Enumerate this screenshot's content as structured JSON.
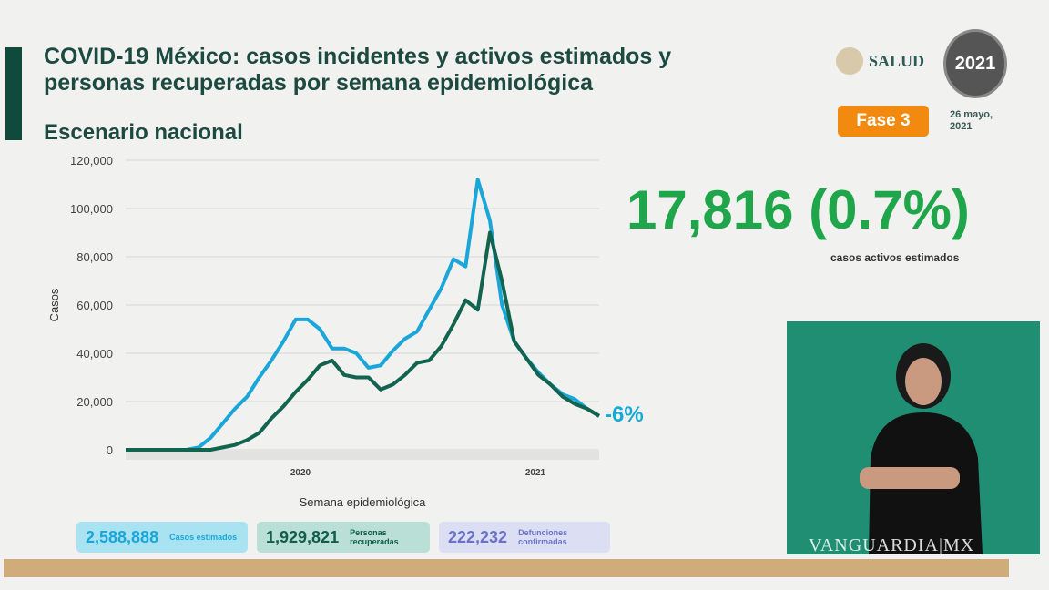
{
  "header": {
    "title": "COVID-19 México: casos incidentes y activos estimados y personas recuperadas por semana epidemiológica",
    "subtitle": "Escenario nacional",
    "salud_logo": "SALUD",
    "mexico_logo": "2021",
    "phase": "Fase 3",
    "date": "26 mayo, 2021"
  },
  "highlight": {
    "value": "17,816 (0.7%)",
    "label": "casos activos estimados"
  },
  "summary": [
    {
      "value": "2,588,888",
      "label": "Casos estimados",
      "color": "#1aa6d9",
      "bg": "#a9e3f2"
    },
    {
      "value": "1,929,821",
      "label": "Personas recuperadas",
      "color": "#115c4a",
      "bg": "#b9dfd6"
    },
    {
      "value": "222,232",
      "label": "Defunciones confirmadas",
      "color": "#6b72c9",
      "bg": "#dcdff3"
    }
  ],
  "watermark": "VANGUARDIA|MX",
  "chart_data": {
    "type": "line",
    "xlabel": "Semana epidemiológica",
    "ylabel": "Casos",
    "ylim": [
      0,
      120000
    ],
    "yticks": [
      "0",
      "20,000",
      "40,000",
      "60,000",
      "80,000",
      "100,000",
      "120,000"
    ],
    "xtick_labels": [
      "2020",
      "2021"
    ],
    "grid": true,
    "change_label": "-6%",
    "series": [
      {
        "color": "#1aa6d9",
        "values": [
          0,
          0,
          0,
          0,
          0,
          0,
          1000,
          5000,
          11000,
          17000,
          22000,
          30000,
          37000,
          45000,
          54000,
          54000,
          50000,
          42000,
          42000,
          40000,
          34000,
          35000,
          41000,
          46000,
          49000,
          58000,
          67000,
          79000,
          76000,
          112000,
          95000,
          60000,
          45000,
          38000,
          32000,
          27000,
          23000,
          21000,
          17000,
          14000
        ]
      },
      {
        "color": "#12644f",
        "values": [
          0,
          0,
          0,
          0,
          0,
          0,
          0,
          0,
          1000,
          2000,
          4000,
          7000,
          13000,
          18000,
          24000,
          29000,
          35000,
          37000,
          31000,
          30000,
          30000,
          25000,
          27000,
          31000,
          36000,
          37000,
          43000,
          52000,
          62000,
          58000,
          90000,
          70000,
          45000,
          38000,
          31000,
          27000,
          22000,
          19000,
          17000,
          14000
        ]
      }
    ]
  }
}
